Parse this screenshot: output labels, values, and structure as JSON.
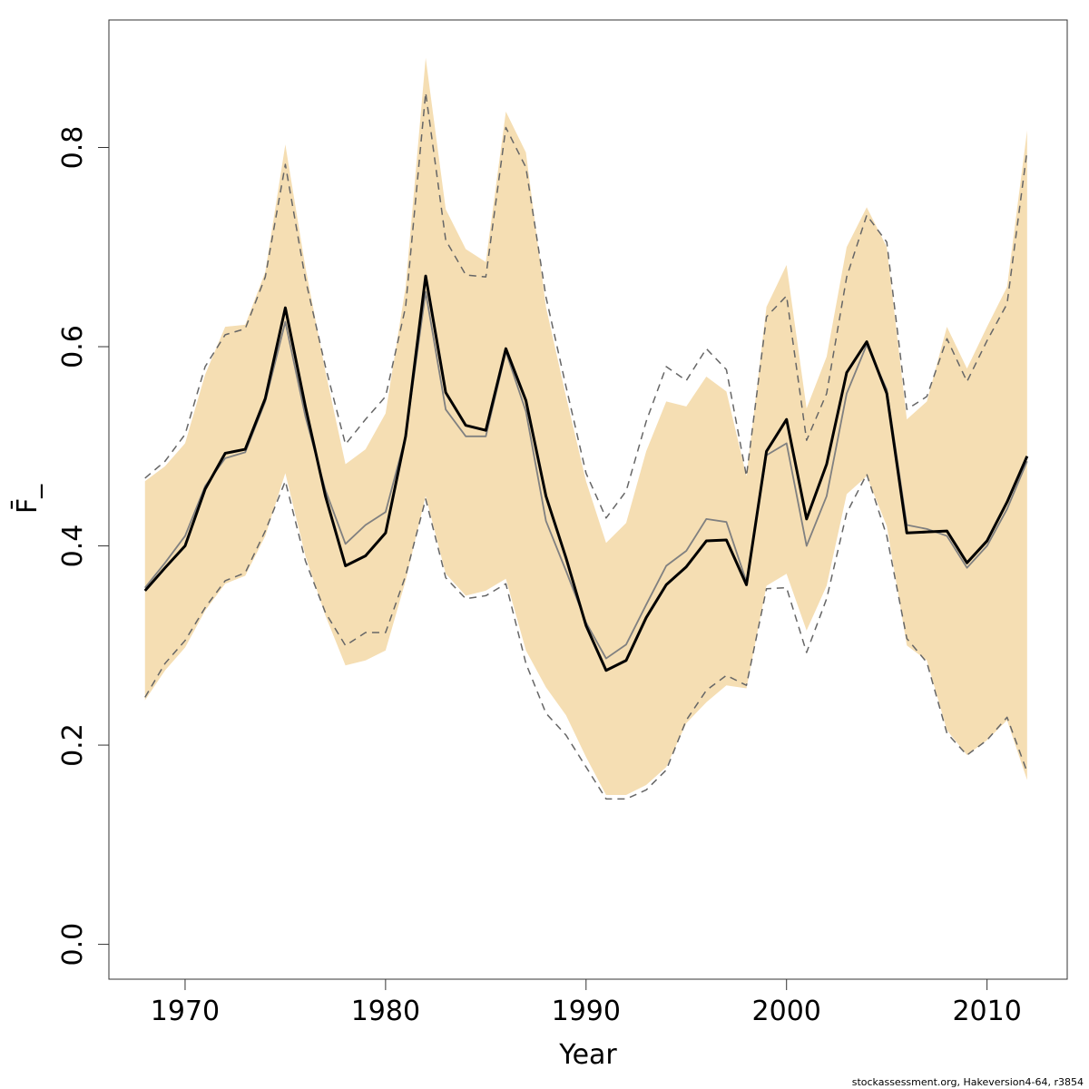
{
  "chart_data": {
    "type": "line",
    "xlabel": "Year",
    "ylabel": "F̄_",
    "footnote": "stockassessment.org, Hakeversion4-64, r3854",
    "x": [
      1968,
      1969,
      1970,
      1971,
      1972,
      1973,
      1974,
      1975,
      1976,
      1977,
      1978,
      1979,
      1980,
      1981,
      1982,
      1983,
      1984,
      1985,
      1986,
      1987,
      1988,
      1989,
      1990,
      1991,
      1992,
      1993,
      1994,
      1995,
      1996,
      1997,
      1998,
      1999,
      2000,
      2001,
      2002,
      2003,
      2004,
      2005,
      2006,
      2007,
      2008,
      2009,
      2010,
      2011,
      2012
    ],
    "band": {
      "color": "#f5deb3",
      "upper": [
        0.465,
        0.48,
        0.503,
        0.572,
        0.62,
        0.622,
        0.675,
        0.803,
        0.68,
        0.575,
        0.482,
        0.497,
        0.533,
        0.66,
        0.89,
        0.738,
        0.698,
        0.685,
        0.836,
        0.795,
        0.64,
        0.55,
        0.465,
        0.403,
        0.423,
        0.495,
        0.545,
        0.54,
        0.57,
        0.555,
        0.47,
        0.64,
        0.682,
        0.538,
        0.59,
        0.7,
        0.74,
        0.7,
        0.527,
        0.545,
        0.62,
        0.578,
        0.62,
        0.66,
        0.817
      ],
      "lower": [
        0.245,
        0.275,
        0.298,
        0.335,
        0.362,
        0.37,
        0.41,
        0.473,
        0.39,
        0.33,
        0.28,
        0.285,
        0.295,
        0.365,
        0.45,
        0.372,
        0.35,
        0.355,
        0.367,
        0.295,
        0.258,
        0.23,
        0.188,
        0.15,
        0.15,
        0.16,
        0.178,
        0.222,
        0.243,
        0.26,
        0.257,
        0.36,
        0.372,
        0.315,
        0.36,
        0.452,
        0.47,
        0.42,
        0.3,
        0.285,
        0.215,
        0.19,
        0.205,
        0.225,
        0.165
      ]
    },
    "series": [
      {
        "color": "#666666",
        "dashed": true,
        "width": 1.5,
        "values": [
          0.468,
          0.485,
          0.512,
          0.58,
          0.612,
          0.618,
          0.67,
          0.783,
          0.668,
          0.58,
          0.502,
          0.527,
          0.55,
          0.64,
          0.855,
          0.707,
          0.672,
          0.67,
          0.82,
          0.78,
          0.65,
          0.56,
          0.473,
          0.428,
          0.455,
          0.525,
          0.58,
          0.566,
          0.598,
          0.577,
          0.47,
          0.63,
          0.651,
          0.506,
          0.553,
          0.67,
          0.732,
          0.705,
          0.537,
          0.55,
          0.608,
          0.565,
          0.606,
          0.643,
          0.797
        ]
      },
      {
        "color": "#666666",
        "dashed": true,
        "width": 1.5,
        "values": [
          0.248,
          0.282,
          0.305,
          0.338,
          0.365,
          0.373,
          0.415,
          0.465,
          0.385,
          0.333,
          0.3,
          0.313,
          0.313,
          0.37,
          0.447,
          0.368,
          0.347,
          0.35,
          0.362,
          0.282,
          0.232,
          0.21,
          0.178,
          0.146,
          0.146,
          0.155,
          0.175,
          0.225,
          0.255,
          0.27,
          0.26,
          0.357,
          0.358,
          0.293,
          0.347,
          0.433,
          0.472,
          0.41,
          0.307,
          0.283,
          0.212,
          0.19,
          0.205,
          0.228,
          0.173
        ]
      },
      {
        "color": "#808080",
        "dashed": false,
        "width": 1.8,
        "values": [
          0.358,
          0.383,
          0.41,
          0.46,
          0.488,
          0.494,
          0.545,
          0.625,
          0.53,
          0.456,
          0.402,
          0.421,
          0.434,
          0.51,
          0.655,
          0.537,
          0.51,
          0.51,
          0.595,
          0.535,
          0.425,
          0.375,
          0.323,
          0.287,
          0.301,
          0.341,
          0.38,
          0.395,
          0.427,
          0.424,
          0.364,
          0.491,
          0.503,
          0.4,
          0.45,
          0.553,
          0.602,
          0.557,
          0.421,
          0.417,
          0.41,
          0.378,
          0.4,
          0.437,
          0.485
        ]
      },
      {
        "color": "#000000",
        "dashed": false,
        "width": 3,
        "values": [
          0.355,
          0.378,
          0.4,
          0.457,
          0.493,
          0.497,
          0.548,
          0.639,
          0.54,
          0.45,
          0.38,
          0.39,
          0.413,
          0.51,
          0.671,
          0.554,
          0.521,
          0.516,
          0.598,
          0.546,
          0.45,
          0.388,
          0.32,
          0.275,
          0.285,
          0.328,
          0.361,
          0.379,
          0.405,
          0.406,
          0.361,
          0.495,
          0.527,
          0.427,
          0.482,
          0.574,
          0.605,
          0.553,
          0.413,
          0.414,
          0.415,
          0.383,
          0.405,
          0.444,
          0.49
        ]
      }
    ],
    "xlim": [
      1966.2,
      2014
    ],
    "ylim": [
      -0.035,
      0.928
    ],
    "xticks": [
      1970,
      1980,
      1990,
      2000,
      2010
    ],
    "yticks": [
      {
        "value": 0,
        "label": "0.0"
      },
      0.2,
      0.4,
      0.6,
      0.8
    ]
  }
}
